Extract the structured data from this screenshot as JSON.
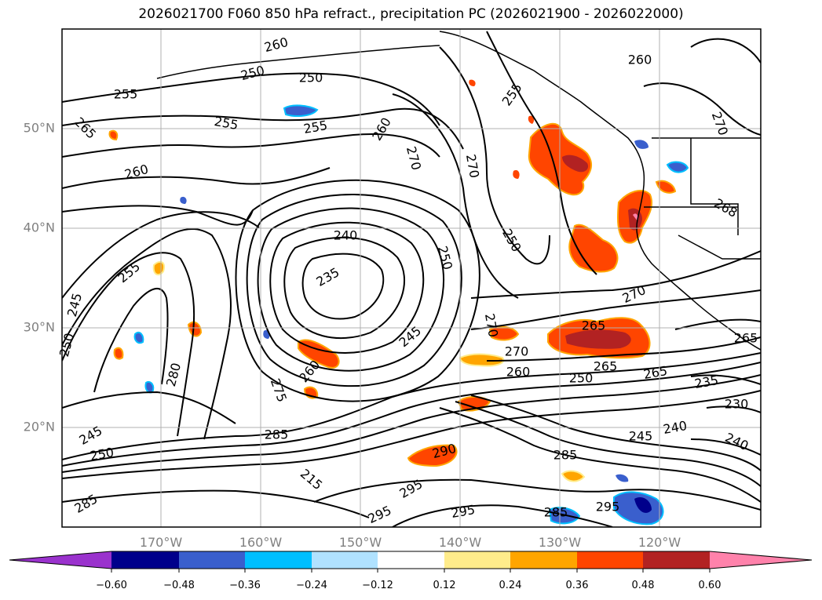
{
  "title": "2026021700 F060 850 hPa refract., precipitation PC (2026021900 - 2026022000)",
  "lon_labels": [
    "170°W",
    "160°W",
    "150°W",
    "140°W",
    "130°W",
    "120°W"
  ],
  "lat_labels": [
    "50°N",
    "40°N",
    "30°N",
    "20°N"
  ],
  "colorbar": {
    "ticks": [
      "−0.60",
      "−0.48",
      "−0.36",
      "−0.24",
      "−0.12",
      "0.12",
      "0.24",
      "0.36",
      "0.48",
      "0.60"
    ],
    "colors": [
      "#9a32cd",
      "#00008b",
      "#3a5fcd",
      "#00bfff",
      "#b0e2ff",
      "#ffffff",
      "#ffec8b",
      "#ffa500",
      "#ff4500",
      "#b22222",
      "#ff82ab"
    ]
  },
  "contour_labels": [
    "260",
    "250",
    "250",
    "255",
    "255",
    "255",
    "265",
    "260",
    "270",
    "260",
    "255",
    "270",
    "260",
    "250",
    "240",
    "235",
    "250",
    "255",
    "245",
    "245",
    "250",
    "270",
    "270",
    "265",
    "260",
    "270",
    "250",
    "265",
    "265",
    "235",
    "230",
    "240",
    "240",
    "245",
    "285",
    "275",
    "280",
    "260",
    "245",
    "250",
    "285",
    "295",
    "295",
    "290",
    "295",
    "285",
    "295",
    "285",
    "215",
    "270",
    "265",
    "268"
  ]
}
